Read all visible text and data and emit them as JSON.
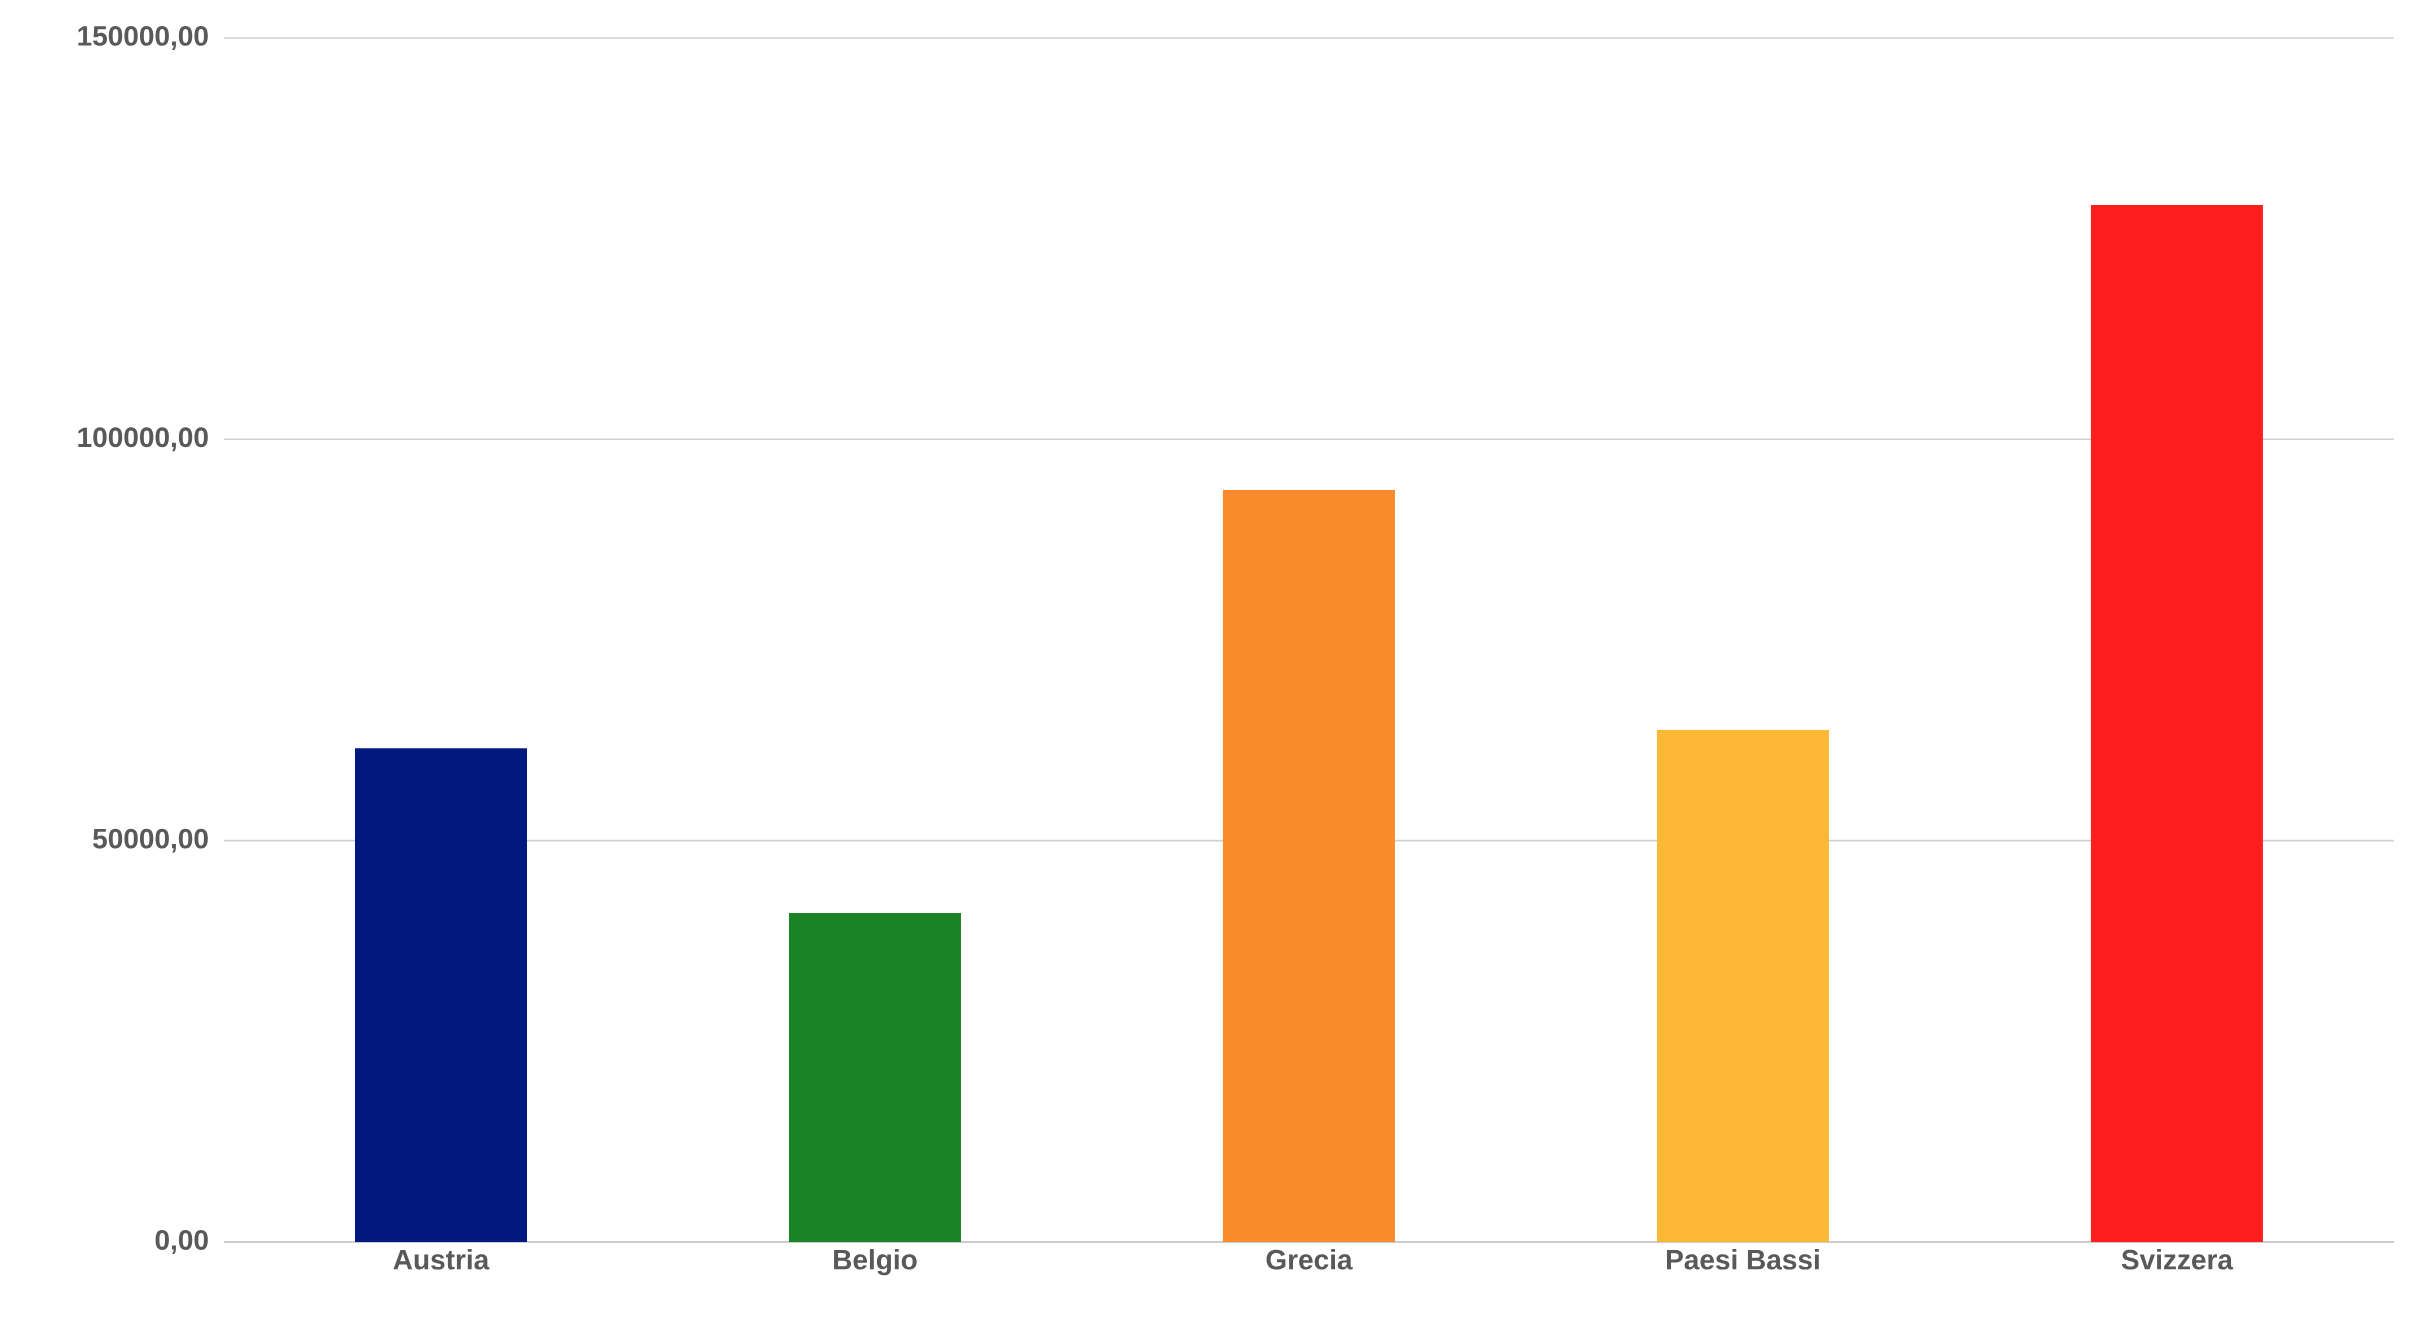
{
  "chart_data": {
    "type": "bar",
    "categories": [
      "Austria",
      "Belgio",
      "Grecia",
      "Paesi Bassi",
      "Svizzera"
    ],
    "values": [
      61500,
      41000,
      93700,
      63800,
      129200
    ],
    "colors": [
      "#00187f",
      "#1a8323",
      "#fb8a2c",
      "#fdb935",
      "#fe1e1e"
    ],
    "ylim": [
      0,
      150000
    ],
    "yticks": [
      {
        "value": 0,
        "label": "0,00"
      },
      {
        "value": 50000,
        "label": "50000,00"
      },
      {
        "value": 100000,
        "label": "100000,00"
      },
      {
        "value": 150000,
        "label": "150000,00"
      }
    ],
    "grid": "y"
  }
}
